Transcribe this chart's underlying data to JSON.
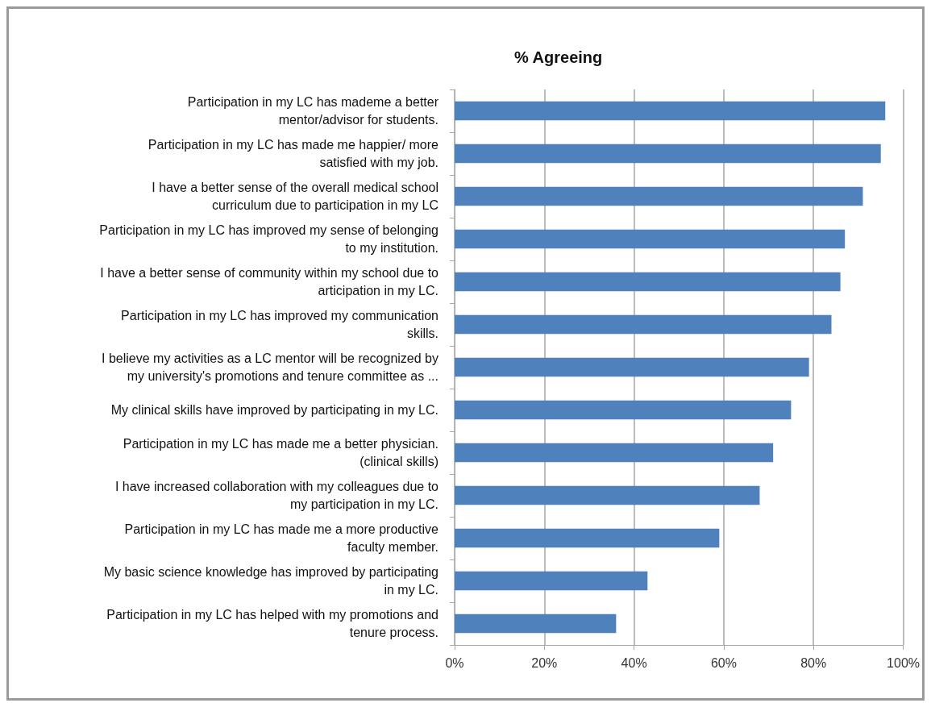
{
  "chart_data": {
    "type": "bar",
    "orientation": "horizontal",
    "title": "% Agreeing",
    "categories": [
      "Participation in my LC has mademe a better\nmentor/advisor for students.",
      "Participation in my LC has made me happier/ more\nsatisfied with my job.",
      "I have a better sense of the overall medical school\ncurriculum due to participation in my LC",
      "Participation in my LC has improved my sense of belonging\nto my institution.",
      "I have a better sense of community within my school due to\narticipation in my LC.",
      "Participation in my LC has improved my communication\nskills.",
      "I believe my activities as a LC mentor will be recognized by\nmy university's promotions and tenure committee as ...",
      "My clinical skills have improved by participating in my LC.",
      "Participation in my LC has made me a better physician.\n(clinical skills)",
      "I have increased collaboration with my colleagues due to\nmy participation in my LC.",
      "Participation in my LC has made me a more productive\nfaculty member.",
      "My basic science knowledge has improved by participating\nin my LC.",
      "Participation in my LC has helped with my promotions and\ntenure process."
    ],
    "values": [
      96,
      95,
      91,
      87,
      86,
      84,
      79,
      75,
      71,
      68,
      59,
      43,
      36
    ],
    "color": "#4f81bd",
    "xlim": [
      0,
      100
    ],
    "xticks": [
      {
        "value": 0,
        "label": "0%"
      },
      {
        "value": 20,
        "label": "20%"
      },
      {
        "value": 40,
        "label": "40%"
      },
      {
        "value": 60,
        "label": "60%"
      },
      {
        "value": 80,
        "label": "80%"
      },
      {
        "value": 100,
        "label": "100%"
      }
    ],
    "grid": "x"
  }
}
